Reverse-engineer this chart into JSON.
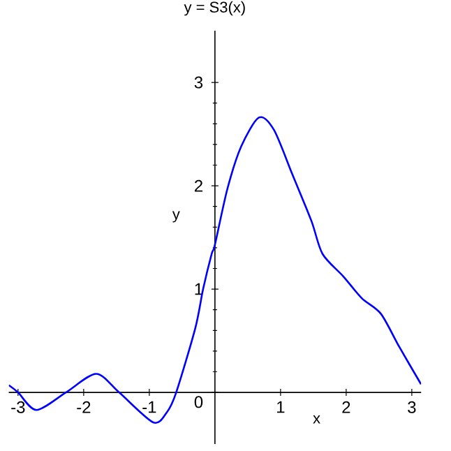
{
  "chart_data": {
    "type": "line",
    "title": "y = S3(x)",
    "xlabel": "x",
    "ylabel": "y",
    "x": [
      -3.14,
      -3.0,
      -2.72,
      -2.27,
      -1.81,
      -1.46,
      -0.94,
      -0.73,
      -0.59,
      -0.3,
      -0.18,
      -0.05,
      0.0,
      0.19,
      0.4,
      0.67,
      0.9,
      1.18,
      1.47,
      1.64,
      1.96,
      2.24,
      2.53,
      2.81,
      3.14
    ],
    "series": [
      {
        "color": "#0000ff",
        "values": [
          0.07,
          0.0,
          -0.17,
          0.0,
          0.18,
          0.0,
          -0.29,
          -0.19,
          0.0,
          0.62,
          1.0,
          1.34,
          1.43,
          1.97,
          2.38,
          2.66,
          2.54,
          2.11,
          1.66,
          1.34,
          1.12,
          0.91,
          0.76,
          0.44,
          0.08
        ]
      }
    ],
    "xlim": [
      -3.1416,
      3.1416
    ],
    "ylim": [
      -0.5,
      3.5
    ],
    "xticks": [
      -3,
      -2,
      -1,
      1,
      2,
      3
    ],
    "yticks": [
      0,
      1,
      2,
      3
    ],
    "grid": false,
    "marker": "none",
    "line_style": "solid"
  }
}
